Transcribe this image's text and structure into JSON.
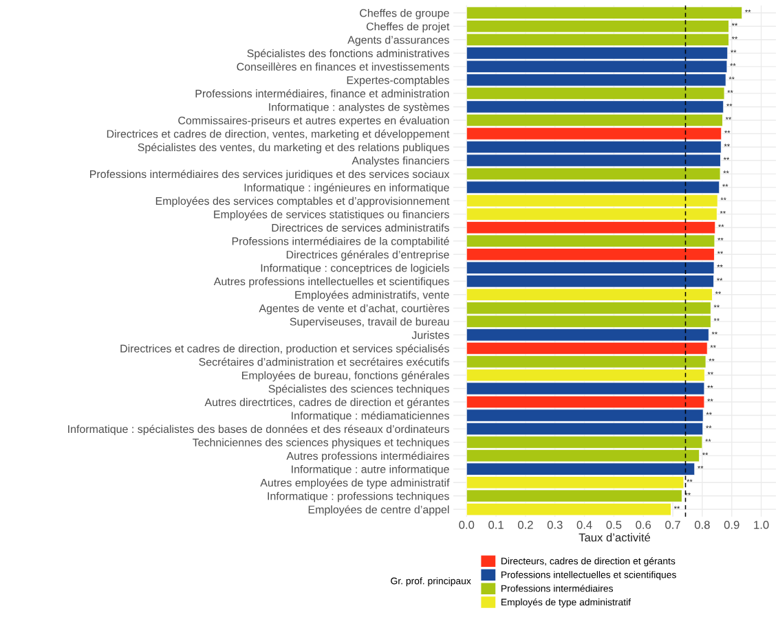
{
  "chart_data": {
    "type": "bar",
    "orientation": "horizontal",
    "xlabel": "Taux d’activité",
    "legend_title": "Gr. prof. principaux",
    "legend": "bottom",
    "grid": true,
    "categories": [
      "Cheffes de groupe",
      "Cheffes de projet",
      "Agents d’assurances",
      "Spécialistes des fonctions administratives",
      "Conseillères en finances et investissements",
      "Expertes-comptables",
      "Professions intermédiaires, finance et administration",
      "Informatique : analystes de systèmes",
      "Commissaires-priseurs et autres expertes en évaluation",
      "Directrices et cadres de direction, ventes, marketing et développement",
      "Spécialistes des ventes, du marketing et des relations publiques",
      "Analystes financiers",
      "Professions intermédiaires des services juridiques et des services sociaux",
      "Informatique : ingénieures en informatique",
      "Employées des services comptables et d’approvisionnement",
      "Employées de services statistiques ou financiers",
      "Directrices de services administratifs",
      "Professions intermédiaires de la comptabilité",
      "Directrices générales d’entreprise",
      "Informatique : conceptrices de logiciels",
      "Autres professions intellectuelles et scientifiques",
      "Employées administratifs, vente",
      "Agentes de vente et d’achat, courtières",
      "Superviseuses, travail de bureau",
      "Juristes",
      "Directrices et cadres de direction, production et services spécialisés",
      "Secrétaires d’administration et secrétaires exécutifs",
      "Employées de bureau, fonctions générales",
      "Spécialistes des sciences techniques",
      "Autres directrtices, cadres de direction et gérantes",
      "Informatique : médiamaticiennes",
      "Informatique : spécialistes des bases de données et des réseaux d’ordinateurs",
      "Techniciennes des sciences physiques et techniques",
      "Autres professions intermédiaires",
      "Informatique : autre informatique",
      "Autres employées de type administratif",
      "Informatique : professions techniques",
      "Employées de centre d’appel"
    ],
    "series": [
      {
        "name": "Directeurs, cadres de direction et gérants",
        "color": "#ff3219",
        "values": [
          null,
          null,
          null,
          null,
          null,
          null,
          null,
          null,
          null,
          0.865,
          null,
          null,
          null,
          null,
          null,
          null,
          0.844,
          null,
          0.841,
          null,
          null,
          null,
          null,
          null,
          null,
          0.817,
          null,
          null,
          null,
          0.807,
          null,
          null,
          null,
          null,
          null,
          null,
          null,
          null
        ],
        "value_labels": [
          null,
          null,
          null,
          null,
          null,
          null,
          null,
          null,
          null,
          "**",
          null,
          null,
          null,
          null,
          null,
          null,
          "**",
          null,
          "**",
          null,
          null,
          null,
          null,
          null,
          null,
          "**",
          null,
          null,
          null,
          "**",
          null,
          null,
          null,
          null,
          null,
          null,
          null,
          null
        ]
      },
      {
        "name": "Professions intellectuelles et scientifiques",
        "color": "#1a4a99",
        "values": [
          null,
          null,
          null,
          0.886,
          0.884,
          0.88,
          null,
          0.872,
          null,
          null,
          0.864,
          0.862,
          null,
          0.858,
          null,
          null,
          null,
          null,
          null,
          0.84,
          0.839,
          null,
          null,
          null,
          0.822,
          null,
          null,
          null,
          0.807,
          null,
          0.803,
          0.802,
          null,
          null,
          0.774,
          null,
          null,
          null
        ],
        "value_labels": [
          null,
          null,
          null,
          "**",
          "**",
          "**",
          null,
          "**",
          null,
          null,
          "**",
          "**",
          null,
          "**",
          null,
          null,
          null,
          null,
          null,
          "**",
          "**",
          null,
          null,
          null,
          "**",
          null,
          null,
          null,
          "**",
          null,
          "**",
          "**",
          null,
          null,
          "**",
          null,
          null,
          null
        ]
      },
      {
        "name": "Professions intermédiaires",
        "color": "#a9c613",
        "values": [
          0.935,
          0.89,
          0.89,
          null,
          null,
          null,
          0.875,
          null,
          0.869,
          null,
          null,
          null,
          0.861,
          null,
          null,
          null,
          null,
          0.842,
          null,
          null,
          null,
          null,
          0.829,
          0.829,
          null,
          null,
          0.812,
          null,
          null,
          null,
          null,
          null,
          0.8,
          0.79,
          null,
          null,
          0.731,
          null
        ],
        "value_labels": [
          "**",
          "**",
          "**",
          null,
          null,
          null,
          "**",
          null,
          "**",
          null,
          null,
          null,
          "**",
          null,
          null,
          null,
          null,
          "**",
          null,
          null,
          null,
          null,
          "**",
          "**",
          null,
          null,
          "**",
          null,
          null,
          null,
          null,
          null,
          "**",
          "**",
          null,
          null,
          "**",
          null
        ]
      },
      {
        "name": "Employés de type administratif",
        "color": "#eeea22",
        "values": [
          null,
          null,
          null,
          null,
          null,
          null,
          null,
          null,
          null,
          null,
          null,
          null,
          null,
          null,
          0.852,
          0.85,
          null,
          null,
          null,
          null,
          null,
          0.834,
          null,
          null,
          null,
          null,
          null,
          0.808,
          null,
          null,
          null,
          null,
          null,
          null,
          null,
          0.737,
          null,
          0.694
        ],
        "value_labels": [
          null,
          null,
          null,
          null,
          null,
          null,
          null,
          null,
          null,
          null,
          null,
          null,
          null,
          null,
          "**",
          "**",
          null,
          null,
          null,
          null,
          null,
          "**",
          null,
          null,
          null,
          null,
          null,
          "**",
          null,
          null,
          null,
          null,
          null,
          null,
          null,
          "**",
          null,
          "**"
        ]
      }
    ],
    "xlim": [
      -0.045,
      1.05
    ],
    "xticks": [
      {
        "value": 0,
        "label": "0.0"
      },
      {
        "value": 0.1,
        "label": "0.1"
      },
      {
        "value": 0.2,
        "label": "0.2"
      },
      {
        "value": 0.3,
        "label": "0.3"
      },
      {
        "value": 0.4,
        "label": "0.4"
      },
      {
        "value": 0.5,
        "label": "0.5"
      },
      {
        "value": 0.6,
        "label": "0.6"
      },
      {
        "value": 0.7,
        "label": "0.7"
      },
      {
        "value": 0.8,
        "label": "0.8"
      },
      {
        "value": 0.9,
        "label": "0.9"
      },
      {
        "value": 1,
        "label": "1.0"
      }
    ],
    "ref_lines": [
      {
        "axis": "x",
        "value": 0.743,
        "line_style": "dashed",
        "color": "#000000"
      }
    ]
  }
}
